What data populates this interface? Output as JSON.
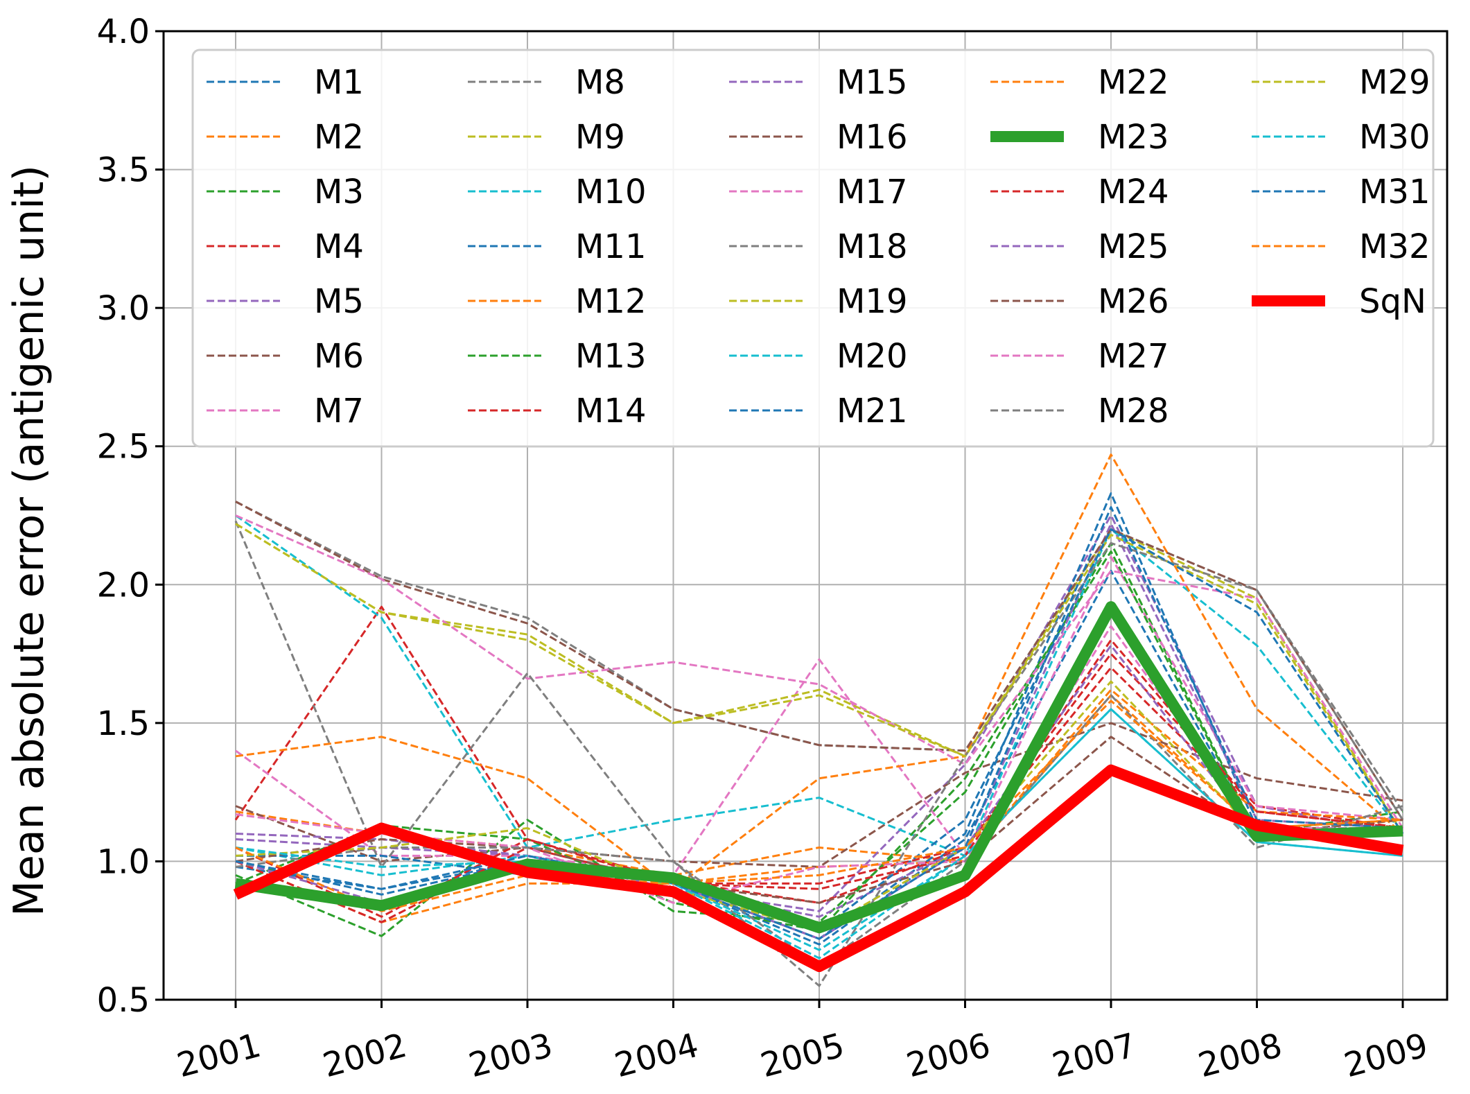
{
  "chart_data": {
    "type": "line",
    "title": "",
    "xlabel": "",
    "ylabel": "Mean absolute error (antigenic unit)",
    "x": [
      "2001",
      "2002",
      "2003",
      "2004",
      "2005",
      "2006",
      "2007",
      "2008",
      "2009"
    ],
    "ylim": [
      0.5,
      4.0
    ],
    "yticks": [
      "0.5",
      "1.0",
      "1.5",
      "2.0",
      "2.5",
      "3.0",
      "3.5",
      "4.0"
    ],
    "grid": true,
    "legend": {
      "placement": "top",
      "columns": 5
    },
    "colors": {
      "blue": "#1f77b4",
      "orange": "#ff7f0e",
      "green": "#2ca02c",
      "red": "#d62728",
      "purple": "#9467bd",
      "brown": "#8c564b",
      "pink": "#e377c2",
      "gray": "#7f7f7f",
      "olive": "#bcbd22",
      "cyan": "#17becf",
      "sqn": "#ff0000"
    },
    "series": [
      {
        "name": "M1",
        "color": "#1f77b4",
        "style": "dashed",
        "values": [
          1.0,
          0.88,
          1.0,
          0.92,
          0.7,
          1.08,
          2.05,
          1.1,
          1.1
        ]
      },
      {
        "name": "M2",
        "color": "#ff7f0e",
        "style": "dashed",
        "values": [
          1.18,
          1.1,
          1.05,
          0.95,
          1.05,
          1.0,
          1.6,
          1.12,
          1.15
        ]
      },
      {
        "name": "M3",
        "color": "#2ca02c",
        "style": "dashed",
        "values": [
          0.95,
          0.73,
          1.15,
          0.82,
          0.78,
          1.25,
          2.15,
          1.1,
          1.18
        ]
      },
      {
        "name": "M4",
        "color": "#d62728",
        "style": "dashed",
        "values": [
          1.15,
          1.92,
          1.08,
          0.93,
          0.85,
          1.05,
          1.75,
          1.2,
          1.12
        ]
      },
      {
        "name": "M5",
        "color": "#9467bd",
        "style": "dashed",
        "values": [
          1.08,
          1.05,
          1.02,
          0.9,
          0.82,
          1.35,
          2.25,
          1.2,
          1.1
        ]
      },
      {
        "name": "M6",
        "color": "#8c564b",
        "style": "dashed",
        "values": [
          1.2,
          1.0,
          1.05,
          1.0,
          0.98,
          1.32,
          1.5,
          1.3,
          1.22
        ]
      },
      {
        "name": "M7",
        "color": "#e377c2",
        "style": "dashed",
        "values": [
          1.4,
          1.02,
          1.02,
          0.95,
          1.73,
          1.02,
          2.1,
          1.2,
          1.15
        ]
      },
      {
        "name": "M8",
        "color": "#7f7f7f",
        "style": "dashed",
        "values": [
          2.3,
          2.03,
          1.88,
          1.55,
          1.42,
          1.4,
          2.2,
          1.98,
          1.18
        ]
      },
      {
        "name": "M9",
        "color": "#bcbd22",
        "style": "dashed",
        "values": [
          2.22,
          1.9,
          1.82,
          1.5,
          1.62,
          1.38,
          2.2,
          1.95,
          1.1
        ]
      },
      {
        "name": "M10",
        "color": "#17becf",
        "style": "dashed",
        "values": [
          2.25,
          1.88,
          1.05,
          1.15,
          1.23,
          1.02,
          2.2,
          1.78,
          1.1
        ]
      },
      {
        "name": "M11",
        "color": "#1f77b4",
        "style": "dashed",
        "values": [
          0.98,
          0.9,
          1.0,
          0.92,
          0.72,
          1.1,
          2.33,
          1.12,
          1.12
        ]
      },
      {
        "name": "M12",
        "color": "#ff7f0e",
        "style": "dashed",
        "values": [
          1.38,
          1.45,
          1.3,
          0.9,
          1.3,
          1.38,
          2.47,
          1.55,
          1.1
        ]
      },
      {
        "name": "M13",
        "color": "#2ca02c",
        "style": "dashed",
        "values": [
          0.92,
          1.13,
          1.08,
          0.85,
          0.75,
          1.3,
          2.12,
          1.1,
          1.15
        ]
      },
      {
        "name": "M14",
        "color": "#d62728",
        "style": "dashed",
        "values": [
          1.05,
          0.8,
          1.08,
          0.92,
          0.92,
          1.05,
          1.7,
          1.18,
          1.12
        ]
      },
      {
        "name": "M15",
        "color": "#9467bd",
        "style": "dashed",
        "values": [
          1.1,
          1.08,
          1.02,
          0.9,
          0.8,
          1.05,
          2.22,
          1.15,
          1.12
        ]
      },
      {
        "name": "M16",
        "color": "#8c564b",
        "style": "dashed",
        "values": [
          2.3,
          2.02,
          1.86,
          1.55,
          1.42,
          1.4,
          2.2,
          1.98,
          1.15
        ]
      },
      {
        "name": "M17",
        "color": "#e377c2",
        "style": "dashed",
        "values": [
          2.25,
          2.02,
          1.66,
          1.72,
          1.64,
          1.35,
          2.05,
          1.95,
          1.12
        ]
      },
      {
        "name": "M18",
        "color": "#7f7f7f",
        "style": "dashed",
        "values": [
          2.23,
          0.98,
          1.68,
          1.0,
          0.55,
          1.38,
          2.15,
          1.98,
          1.15
        ]
      },
      {
        "name": "M19",
        "color": "#bcbd22",
        "style": "dashed",
        "values": [
          2.22,
          1.9,
          1.8,
          1.5,
          1.6,
          1.38,
          2.18,
          1.93,
          1.1
        ]
      },
      {
        "name": "M20",
        "color": "#17becf",
        "style": "dashed",
        "values": [
          1.05,
          0.95,
          1.02,
          0.92,
          0.68,
          1.02,
          1.55,
          1.07,
          1.02
        ]
      },
      {
        "name": "M21",
        "color": "#1f77b4",
        "style": "dashed",
        "values": [
          1.02,
          1.02,
          0.95,
          0.9,
          0.75,
          1.15,
          2.2,
          1.9,
          1.1
        ]
      },
      {
        "name": "M22",
        "color": "#ff7f0e",
        "style": "dashed",
        "values": [
          1.0,
          0.78,
          0.92,
          0.92,
          0.98,
          1.0,
          1.62,
          1.18,
          1.15
        ]
      },
      {
        "name": "M23",
        "color": "#2ca02c",
        "style": "thick",
        "values": [
          0.92,
          0.84,
          0.99,
          0.94,
          0.76,
          0.95,
          1.92,
          1.09,
          1.11
        ]
      },
      {
        "name": "M24",
        "color": "#d62728",
        "style": "dashed",
        "values": [
          1.0,
          0.78,
          1.05,
          0.92,
          0.9,
          1.02,
          1.8,
          1.18,
          1.12
        ]
      },
      {
        "name": "M25",
        "color": "#9467bd",
        "style": "dashed",
        "values": [
          1.0,
          0.85,
          1.0,
          0.92,
          0.72,
          1.05,
          1.78,
          1.1,
          1.12
        ]
      },
      {
        "name": "M26",
        "color": "#8c564b",
        "style": "dashed",
        "values": [
          1.0,
          1.08,
          1.05,
          0.92,
          0.85,
          1.0,
          1.45,
          1.1,
          1.15
        ]
      },
      {
        "name": "M27",
        "color": "#e377c2",
        "style": "dashed",
        "values": [
          1.17,
          1.1,
          1.05,
          0.85,
          0.98,
          1.0,
          1.85,
          1.12,
          1.12
        ]
      },
      {
        "name": "M28",
        "color": "#7f7f7f",
        "style": "dashed",
        "values": [
          0.98,
          1.05,
          1.05,
          1.0,
          0.62,
          1.0,
          1.6,
          1.05,
          1.2
        ]
      },
      {
        "name": "M29",
        "color": "#bcbd22",
        "style": "dashed",
        "values": [
          1.02,
          1.05,
          1.12,
          0.9,
          0.75,
          1.05,
          1.65,
          1.1,
          1.12
        ]
      },
      {
        "name": "M30",
        "color": "#17becf",
        "style": "dashed",
        "values": [
          1.05,
          0.98,
          1.0,
          0.92,
          0.65,
          1.02,
          1.55,
          1.07,
          1.02
        ]
      },
      {
        "name": "M31",
        "color": "#1f77b4",
        "style": "dashed",
        "values": [
          1.0,
          0.9,
          1.02,
          0.92,
          0.72,
          1.05,
          2.28,
          1.15,
          1.12
        ]
      },
      {
        "name": "M32",
        "color": "#ff7f0e",
        "style": "dashed",
        "values": [
          1.05,
          0.82,
          0.95,
          0.92,
          0.95,
          1.05,
          1.58,
          1.12,
          1.15
        ]
      },
      {
        "name": "SqN",
        "color": "#ff0000",
        "style": "thick",
        "values": [
          0.88,
          1.12,
          0.96,
          0.89,
          0.62,
          0.89,
          1.33,
          1.13,
          1.04
        ]
      }
    ]
  }
}
